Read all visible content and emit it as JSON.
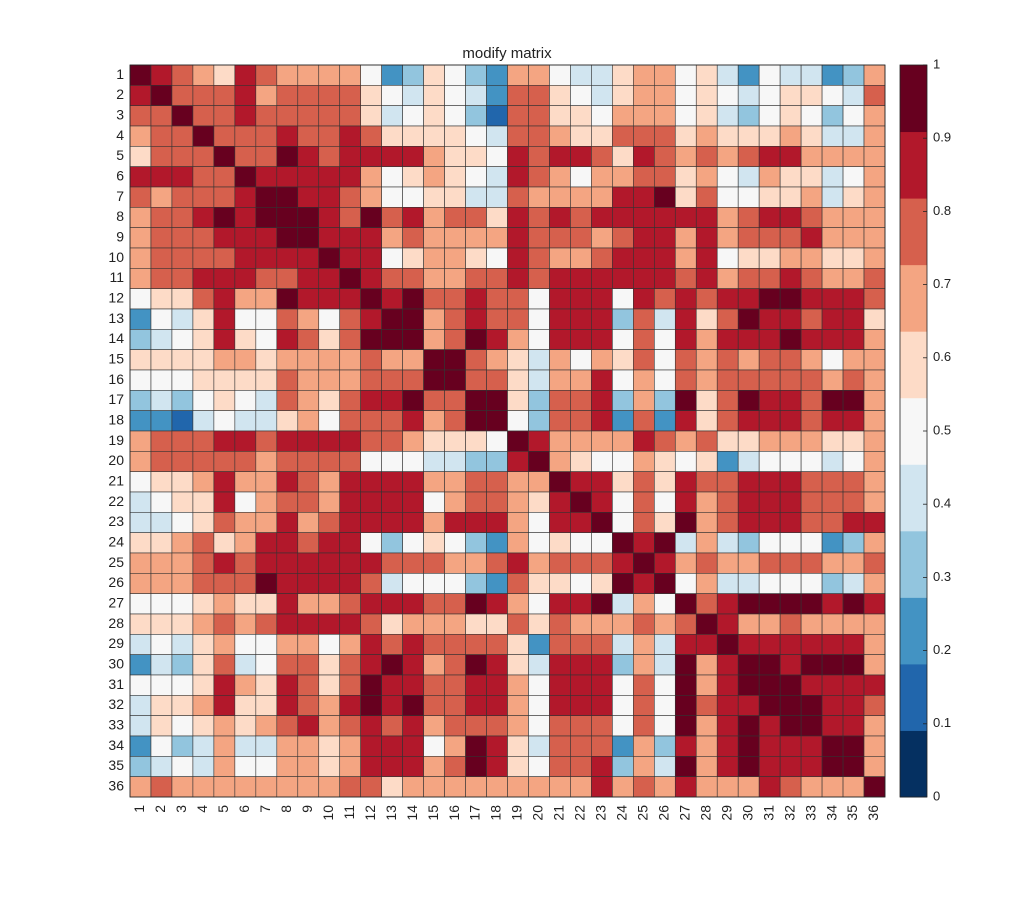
{
  "chart_data": {
    "type": "heatmap",
    "title": "modify matrix",
    "categories": [
      "1",
      "2",
      "3",
      "4",
      "5",
      "6",
      "7",
      "8",
      "9",
      "10",
      "11",
      "12",
      "13",
      "14",
      "15",
      "16",
      "17",
      "18",
      "19",
      "20",
      "21",
      "22",
      "23",
      "24",
      "25",
      "26",
      "27",
      "28",
      "29",
      "30",
      "31",
      "32",
      "33",
      "34",
      "35",
      "36"
    ],
    "row_categories": [
      "1",
      "2",
      "3",
      "4",
      "5",
      "6",
      "7",
      "8",
      "9",
      "10",
      "11",
      "12",
      "13",
      "14",
      "15",
      "16",
      "17",
      "18",
      "19",
      "20",
      "21",
      "22",
      "23",
      "24",
      "25",
      "26",
      "27",
      "28",
      "29",
      "30",
      "31",
      "32",
      "33",
      "34",
      "35",
      "36"
    ],
    "clim": [
      0,
      1
    ],
    "cticks": [
      0,
      0.1,
      0.2,
      0.3,
      0.4,
      0.5,
      0.6,
      0.7,
      0.8,
      0.9,
      1
    ],
    "colormap": [
      "#053061",
      "#2166ac",
      "#4393c3",
      "#92c5de",
      "#d1e5f0",
      "#f7f7f7",
      "#fddbc7",
      "#f4a582",
      "#d6604d",
      "#b2182b",
      "#67001f"
    ],
    "values": [
      [
        0.95,
        0.86,
        0.77,
        0.68,
        0.59,
        0.86,
        0.77,
        0.68,
        0.68,
        0.68,
        0.68,
        0.5,
        0.23,
        0.32,
        0.59,
        0.5,
        0.32,
        0.23,
        0.68,
        0.68,
        0.5,
        0.41,
        0.41,
        0.59,
        0.68,
        0.68,
        0.5,
        0.59,
        0.41,
        0.23,
        0.5,
        0.41,
        0.41,
        0.23,
        0.32,
        0.68
      ],
      [
        0.86,
        0.95,
        0.77,
        0.77,
        0.77,
        0.86,
        0.68,
        0.77,
        0.77,
        0.77,
        0.77,
        0.59,
        0.5,
        0.41,
        0.59,
        0.5,
        0.41,
        0.23,
        0.77,
        0.77,
        0.59,
        0.5,
        0.41,
        0.59,
        0.68,
        0.68,
        0.5,
        0.59,
        0.5,
        0.41,
        0.5,
        0.59,
        0.59,
        0.5,
        0.41,
        0.77
      ],
      [
        0.77,
        0.77,
        0.95,
        0.77,
        0.77,
        0.86,
        0.77,
        0.77,
        0.77,
        0.77,
        0.77,
        0.59,
        0.41,
        0.5,
        0.59,
        0.5,
        0.32,
        0.14,
        0.77,
        0.77,
        0.59,
        0.59,
        0.5,
        0.68,
        0.68,
        0.68,
        0.5,
        0.59,
        0.41,
        0.32,
        0.5,
        0.59,
        0.5,
        0.32,
        0.5,
        0.68
      ],
      [
        0.68,
        0.77,
        0.77,
        0.95,
        0.77,
        0.77,
        0.77,
        0.86,
        0.77,
        0.77,
        0.86,
        0.77,
        0.59,
        0.59,
        0.59,
        0.59,
        0.5,
        0.41,
        0.77,
        0.77,
        0.68,
        0.59,
        0.59,
        0.77,
        0.77,
        0.77,
        0.59,
        0.68,
        0.59,
        0.59,
        0.59,
        0.68,
        0.59,
        0.41,
        0.41,
        0.68
      ],
      [
        0.59,
        0.77,
        0.77,
        0.77,
        0.95,
        0.77,
        0.77,
        0.95,
        0.86,
        0.77,
        0.86,
        0.86,
        0.86,
        0.86,
        0.68,
        0.59,
        0.59,
        0.5,
        0.86,
        0.77,
        0.86,
        0.86,
        0.77,
        0.59,
        0.86,
        0.77,
        0.68,
        0.77,
        0.68,
        0.77,
        0.86,
        0.86,
        0.68,
        0.68,
        0.68,
        0.68
      ],
      [
        0.86,
        0.86,
        0.86,
        0.77,
        0.77,
        0.95,
        0.86,
        0.86,
        0.86,
        0.86,
        0.86,
        0.68,
        0.5,
        0.59,
        0.68,
        0.59,
        0.5,
        0.41,
        0.86,
        0.77,
        0.68,
        0.5,
        0.68,
        0.68,
        0.77,
        0.77,
        0.59,
        0.68,
        0.5,
        0.41,
        0.68,
        0.59,
        0.59,
        0.41,
        0.5,
        0.68
      ],
      [
        0.77,
        0.68,
        0.77,
        0.77,
        0.77,
        0.86,
        0.95,
        0.95,
        0.86,
        0.86,
        0.77,
        0.68,
        0.5,
        0.5,
        0.59,
        0.59,
        0.41,
        0.41,
        0.77,
        0.68,
        0.68,
        0.68,
        0.68,
        0.86,
        0.86,
        0.95,
        0.59,
        0.77,
        0.5,
        0.5,
        0.59,
        0.59,
        0.68,
        0.41,
        0.59,
        0.68
      ],
      [
        0.68,
        0.77,
        0.77,
        0.86,
        0.95,
        0.86,
        0.95,
        0.95,
        0.95,
        0.86,
        0.77,
        0.95,
        0.77,
        0.86,
        0.68,
        0.77,
        0.77,
        0.59,
        0.86,
        0.77,
        0.86,
        0.77,
        0.86,
        0.86,
        0.86,
        0.86,
        0.86,
        0.86,
        0.68,
        0.77,
        0.86,
        0.86,
        0.77,
        0.68,
        0.68,
        0.68
      ],
      [
        0.68,
        0.77,
        0.77,
        0.77,
        0.86,
        0.86,
        0.86,
        0.95,
        0.95,
        0.86,
        0.86,
        0.86,
        0.68,
        0.77,
        0.68,
        0.68,
        0.68,
        0.68,
        0.86,
        0.77,
        0.77,
        0.77,
        0.68,
        0.77,
        0.86,
        0.86,
        0.68,
        0.86,
        0.68,
        0.77,
        0.77,
        0.77,
        0.86,
        0.68,
        0.68,
        0.68
      ],
      [
        0.68,
        0.77,
        0.77,
        0.77,
        0.77,
        0.86,
        0.86,
        0.86,
        0.86,
        0.95,
        0.86,
        0.86,
        0.5,
        0.59,
        0.68,
        0.68,
        0.59,
        0.5,
        0.86,
        0.77,
        0.68,
        0.68,
        0.77,
        0.86,
        0.86,
        0.86,
        0.68,
        0.86,
        0.5,
        0.59,
        0.59,
        0.68,
        0.68,
        0.59,
        0.59,
        0.68
      ],
      [
        0.68,
        0.77,
        0.77,
        0.86,
        0.86,
        0.86,
        0.77,
        0.77,
        0.86,
        0.86,
        0.95,
        0.86,
        0.77,
        0.77,
        0.68,
        0.68,
        0.77,
        0.77,
        0.86,
        0.77,
        0.86,
        0.86,
        0.86,
        0.86,
        0.86,
        0.86,
        0.77,
        0.86,
        0.68,
        0.77,
        0.77,
        0.86,
        0.77,
        0.68,
        0.68,
        0.77
      ],
      [
        0.5,
        0.59,
        0.59,
        0.77,
        0.86,
        0.68,
        0.68,
        0.95,
        0.86,
        0.86,
        0.86,
        0.95,
        0.86,
        0.95,
        0.77,
        0.77,
        0.86,
        0.77,
        0.77,
        0.5,
        0.86,
        0.86,
        0.86,
        0.5,
        0.86,
        0.77,
        0.86,
        0.77,
        0.86,
        0.86,
        0.95,
        0.95,
        0.86,
        0.86,
        0.86,
        0.77
      ],
      [
        0.23,
        0.5,
        0.41,
        0.59,
        0.86,
        0.5,
        0.5,
        0.77,
        0.68,
        0.5,
        0.77,
        0.86,
        0.95,
        0.95,
        0.68,
        0.77,
        0.86,
        0.77,
        0.77,
        0.5,
        0.86,
        0.86,
        0.86,
        0.32,
        0.77,
        0.41,
        0.86,
        0.59,
        0.77,
        0.95,
        0.86,
        0.86,
        0.77,
        0.86,
        0.86,
        0.59
      ],
      [
        0.32,
        0.41,
        0.5,
        0.59,
        0.86,
        0.59,
        0.5,
        0.86,
        0.77,
        0.59,
        0.77,
        0.95,
        0.95,
        0.95,
        0.68,
        0.77,
        0.95,
        0.86,
        0.68,
        0.5,
        0.86,
        0.86,
        0.86,
        0.5,
        0.77,
        0.5,
        0.86,
        0.68,
        0.86,
        0.86,
        0.86,
        0.95,
        0.86,
        0.86,
        0.86,
        0.68
      ],
      [
        0.59,
        0.59,
        0.59,
        0.59,
        0.68,
        0.68,
        0.59,
        0.68,
        0.68,
        0.68,
        0.68,
        0.77,
        0.68,
        0.68,
        0.95,
        0.95,
        0.77,
        0.68,
        0.59,
        0.41,
        0.68,
        0.5,
        0.68,
        0.59,
        0.77,
        0.5,
        0.77,
        0.68,
        0.77,
        0.68,
        0.77,
        0.77,
        0.68,
        0.5,
        0.68,
        0.68
      ],
      [
        0.5,
        0.5,
        0.5,
        0.59,
        0.59,
        0.59,
        0.59,
        0.77,
        0.68,
        0.68,
        0.68,
        0.77,
        0.77,
        0.77,
        0.95,
        0.95,
        0.77,
        0.77,
        0.59,
        0.41,
        0.68,
        0.68,
        0.86,
        0.5,
        0.68,
        0.5,
        0.77,
        0.68,
        0.77,
        0.77,
        0.77,
        0.77,
        0.77,
        0.68,
        0.77,
        0.68
      ],
      [
        0.32,
        0.41,
        0.32,
        0.5,
        0.59,
        0.5,
        0.41,
        0.77,
        0.68,
        0.59,
        0.77,
        0.86,
        0.86,
        0.95,
        0.77,
        0.77,
        0.95,
        0.95,
        0.59,
        0.32,
        0.77,
        0.77,
        0.86,
        0.32,
        0.68,
        0.32,
        0.95,
        0.59,
        0.77,
        0.95,
        0.86,
        0.86,
        0.77,
        0.95,
        0.95,
        0.68
      ],
      [
        0.23,
        0.23,
        0.14,
        0.41,
        0.5,
        0.41,
        0.41,
        0.59,
        0.68,
        0.5,
        0.77,
        0.77,
        0.77,
        0.86,
        0.68,
        0.77,
        0.95,
        0.95,
        0.5,
        0.32,
        0.77,
        0.77,
        0.86,
        0.23,
        0.77,
        0.23,
        0.86,
        0.59,
        0.77,
        0.86,
        0.86,
        0.86,
        0.77,
        0.86,
        0.86,
        0.68
      ],
      [
        0.68,
        0.77,
        0.77,
        0.77,
        0.86,
        0.86,
        0.77,
        0.86,
        0.86,
        0.86,
        0.86,
        0.77,
        0.77,
        0.68,
        0.59,
        0.59,
        0.59,
        0.5,
        0.95,
        0.86,
        0.68,
        0.68,
        0.68,
        0.68,
        0.86,
        0.77,
        0.68,
        0.77,
        0.59,
        0.59,
        0.68,
        0.68,
        0.68,
        0.59,
        0.59,
        0.68
      ],
      [
        0.68,
        0.77,
        0.77,
        0.77,
        0.77,
        0.77,
        0.68,
        0.77,
        0.77,
        0.77,
        0.77,
        0.5,
        0.5,
        0.5,
        0.41,
        0.41,
        0.32,
        0.32,
        0.86,
        0.95,
        0.68,
        0.59,
        0.5,
        0.5,
        0.68,
        0.59,
        0.5,
        0.59,
        0.23,
        0.41,
        0.5,
        0.5,
        0.5,
        0.41,
        0.5,
        0.68
      ],
      [
        0.5,
        0.59,
        0.59,
        0.68,
        0.86,
        0.68,
        0.68,
        0.86,
        0.77,
        0.68,
        0.86,
        0.86,
        0.86,
        0.86,
        0.68,
        0.68,
        0.77,
        0.77,
        0.68,
        0.68,
        0.95,
        0.86,
        0.86,
        0.59,
        0.77,
        0.59,
        0.86,
        0.77,
        0.77,
        0.86,
        0.86,
        0.86,
        0.77,
        0.77,
        0.77,
        0.68
      ],
      [
        0.41,
        0.5,
        0.59,
        0.59,
        0.86,
        0.5,
        0.68,
        0.77,
        0.77,
        0.68,
        0.86,
        0.86,
        0.86,
        0.86,
        0.5,
        0.68,
        0.77,
        0.77,
        0.68,
        0.59,
        0.86,
        0.95,
        0.86,
        0.5,
        0.77,
        0.5,
        0.86,
        0.68,
        0.77,
        0.86,
        0.86,
        0.86,
        0.77,
        0.77,
        0.77,
        0.68
      ],
      [
        0.41,
        0.41,
        0.5,
        0.59,
        0.77,
        0.68,
        0.68,
        0.86,
        0.68,
        0.77,
        0.86,
        0.86,
        0.86,
        0.86,
        0.68,
        0.86,
        0.86,
        0.86,
        0.68,
        0.5,
        0.86,
        0.86,
        0.95,
        0.5,
        0.77,
        0.59,
        0.95,
        0.68,
        0.77,
        0.86,
        0.86,
        0.86,
        0.77,
        0.77,
        0.86,
        0.86
      ],
      [
        0.59,
        0.59,
        0.68,
        0.77,
        0.59,
        0.68,
        0.86,
        0.86,
        0.77,
        0.86,
        0.86,
        0.5,
        0.32,
        0.5,
        0.59,
        0.5,
        0.32,
        0.23,
        0.68,
        0.5,
        0.59,
        0.5,
        0.5,
        0.95,
        0.86,
        0.95,
        0.41,
        0.68,
        0.41,
        0.32,
        0.5,
        0.5,
        0.5,
        0.23,
        0.32,
        0.68
      ],
      [
        0.68,
        0.68,
        0.68,
        0.77,
        0.86,
        0.77,
        0.86,
        0.86,
        0.86,
        0.86,
        0.86,
        0.86,
        0.77,
        0.77,
        0.77,
        0.68,
        0.68,
        0.77,
        0.86,
        0.68,
        0.77,
        0.77,
        0.77,
        0.86,
        0.95,
        0.86,
        0.68,
        0.77,
        0.68,
        0.68,
        0.77,
        0.77,
        0.77,
        0.68,
        0.68,
        0.77
      ],
      [
        0.68,
        0.68,
        0.68,
        0.77,
        0.77,
        0.77,
        0.95,
        0.86,
        0.86,
        0.86,
        0.86,
        0.77,
        0.41,
        0.5,
        0.5,
        0.5,
        0.32,
        0.23,
        0.77,
        0.59,
        0.59,
        0.5,
        0.59,
        0.95,
        0.86,
        0.95,
        0.5,
        0.68,
        0.41,
        0.41,
        0.5,
        0.5,
        0.5,
        0.32,
        0.41,
        0.68
      ],
      [
        0.5,
        0.5,
        0.5,
        0.59,
        0.68,
        0.59,
        0.59,
        0.86,
        0.68,
        0.68,
        0.77,
        0.86,
        0.86,
        0.86,
        0.77,
        0.77,
        0.95,
        0.86,
        0.68,
        0.5,
        0.86,
        0.86,
        0.95,
        0.41,
        0.68,
        0.5,
        0.95,
        0.77,
        0.86,
        0.95,
        0.95,
        0.95,
        0.95,
        0.86,
        0.95,
        0.86
      ],
      [
        0.59,
        0.59,
        0.59,
        0.68,
        0.77,
        0.68,
        0.77,
        0.86,
        0.86,
        0.86,
        0.86,
        0.77,
        0.59,
        0.68,
        0.68,
        0.68,
        0.59,
        0.59,
        0.77,
        0.59,
        0.77,
        0.68,
        0.68,
        0.68,
        0.77,
        0.68,
        0.77,
        0.95,
        0.86,
        0.68,
        0.68,
        0.77,
        0.68,
        0.68,
        0.68,
        0.68
      ],
      [
        0.41,
        0.5,
        0.41,
        0.59,
        0.68,
        0.5,
        0.5,
        0.68,
        0.68,
        0.5,
        0.68,
        0.86,
        0.77,
        0.86,
        0.77,
        0.77,
        0.77,
        0.77,
        0.59,
        0.23,
        0.77,
        0.77,
        0.77,
        0.41,
        0.68,
        0.41,
        0.86,
        0.86,
        0.95,
        0.86,
        0.86,
        0.86,
        0.86,
        0.86,
        0.86,
        0.68
      ],
      [
        0.23,
        0.41,
        0.32,
        0.59,
        0.77,
        0.41,
        0.5,
        0.77,
        0.77,
        0.59,
        0.77,
        0.86,
        0.95,
        0.86,
        0.68,
        0.77,
        0.95,
        0.86,
        0.59,
        0.41,
        0.86,
        0.86,
        0.86,
        0.32,
        0.68,
        0.41,
        0.95,
        0.68,
        0.86,
        0.95,
        0.95,
        0.86,
        0.95,
        0.95,
        0.95,
        0.68
      ],
      [
        0.5,
        0.5,
        0.5,
        0.59,
        0.86,
        0.68,
        0.59,
        0.86,
        0.77,
        0.59,
        0.77,
        0.95,
        0.86,
        0.86,
        0.77,
        0.77,
        0.86,
        0.86,
        0.68,
        0.5,
        0.86,
        0.86,
        0.86,
        0.5,
        0.77,
        0.5,
        0.95,
        0.68,
        0.86,
        0.95,
        0.95,
        0.95,
        0.86,
        0.86,
        0.86,
        0.86
      ],
      [
        0.41,
        0.59,
        0.59,
        0.68,
        0.86,
        0.59,
        0.59,
        0.86,
        0.77,
        0.68,
        0.86,
        0.95,
        0.86,
        0.95,
        0.77,
        0.77,
        0.86,
        0.86,
        0.68,
        0.5,
        0.86,
        0.86,
        0.86,
        0.5,
        0.77,
        0.5,
        0.95,
        0.77,
        0.86,
        0.86,
        0.95,
        0.95,
        0.95,
        0.86,
        0.86,
        0.77
      ],
      [
        0.41,
        0.59,
        0.5,
        0.59,
        0.68,
        0.59,
        0.68,
        0.77,
        0.86,
        0.68,
        0.77,
        0.86,
        0.77,
        0.86,
        0.68,
        0.77,
        0.77,
        0.77,
        0.68,
        0.5,
        0.77,
        0.77,
        0.77,
        0.5,
        0.77,
        0.5,
        0.95,
        0.68,
        0.86,
        0.95,
        0.86,
        0.95,
        0.95,
        0.86,
        0.86,
        0.68
      ],
      [
        0.23,
        0.5,
        0.32,
        0.41,
        0.68,
        0.41,
        0.41,
        0.68,
        0.68,
        0.59,
        0.68,
        0.86,
        0.86,
        0.86,
        0.5,
        0.68,
        0.95,
        0.86,
        0.59,
        0.41,
        0.77,
        0.77,
        0.77,
        0.23,
        0.68,
        0.32,
        0.86,
        0.68,
        0.86,
        0.95,
        0.86,
        0.86,
        0.86,
        0.95,
        0.95,
        0.68
      ],
      [
        0.32,
        0.41,
        0.5,
        0.41,
        0.68,
        0.5,
        0.5,
        0.68,
        0.68,
        0.59,
        0.68,
        0.86,
        0.86,
        0.86,
        0.68,
        0.77,
        0.95,
        0.86,
        0.59,
        0.5,
        0.77,
        0.77,
        0.86,
        0.32,
        0.68,
        0.41,
        0.95,
        0.68,
        0.86,
        0.95,
        0.86,
        0.86,
        0.86,
        0.95,
        0.95,
        0.68
      ],
      [
        0.68,
        0.77,
        0.68,
        0.68,
        0.68,
        0.68,
        0.68,
        0.68,
        0.68,
        0.68,
        0.77,
        0.77,
        0.59,
        0.68,
        0.68,
        0.68,
        0.68,
        0.68,
        0.68,
        0.68,
        0.68,
        0.68,
        0.86,
        0.68,
        0.77,
        0.68,
        0.86,
        0.68,
        0.68,
        0.68,
        0.86,
        0.77,
        0.68,
        0.68,
        0.68,
        0.95
      ]
    ]
  }
}
